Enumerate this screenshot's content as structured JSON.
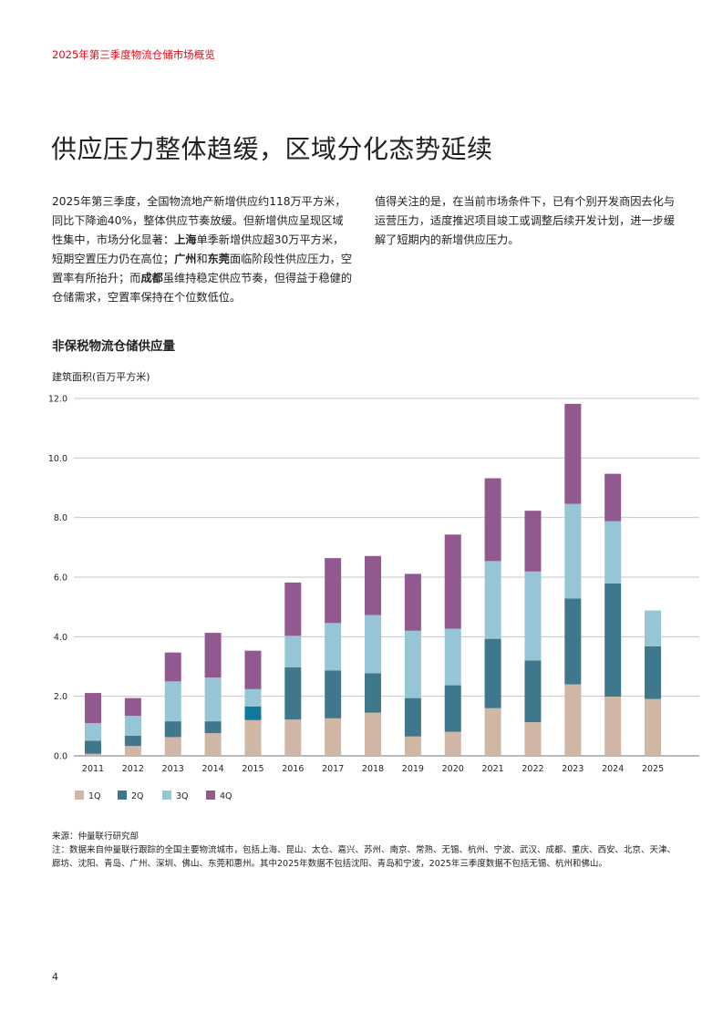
{
  "header": "2025年第三季度物流仓储市场概览",
  "title": "供应压力整体趋缓，区域分化态势延续",
  "paragraph_left": [
    {
      "text": "2025年第三季度，全国物流地产新增供应约118万平方米，同比下降逾40%，整体供应节奏放缓。但新增供应呈现区域性集中，市场分化显著：",
      "bold": false
    },
    {
      "text": "上海",
      "bold": true
    },
    {
      "text": "单季新增供应超30万平方米，短期空置压力仍在高位；",
      "bold": false
    },
    {
      "text": "广州",
      "bold": true
    },
    {
      "text": "和",
      "bold": false
    },
    {
      "text": "东莞",
      "bold": true
    },
    {
      "text": "面临阶段性供应压力，空置率有所抬升；而",
      "bold": false
    },
    {
      "text": "成都",
      "bold": true
    },
    {
      "text": "虽维持稳定供应节奏，但得益于稳健的仓储需求，空置率保持在个位数低位。",
      "bold": false
    }
  ],
  "paragraph_right": "值得关注的是，在当前市场条件下，已有个别开发商因去化与运营压力，适度推迟项目竣工或调整后续开发计划，进一步缓解了短期内的新增供应压力。",
  "chart_data": {
    "type": "bar",
    "stacked": true,
    "title": "非保税物流仓储供应量",
    "ylabel": "建筑面积(百万平方米)",
    "xlabel": "",
    "ylim": [
      0,
      12
    ],
    "yticks": [
      "0.0",
      "2.0",
      "4.0",
      "6.0",
      "8.0",
      "10.0",
      "12.0"
    ],
    "grid": true,
    "legend_position": "bottom-left",
    "categories": [
      "2011",
      "2012",
      "2013",
      "2014",
      "2015",
      "2016",
      "2017",
      "2018",
      "2019",
      "2020",
      "2021",
      "2022",
      "2023",
      "2024",
      "2025"
    ],
    "series": [
      {
        "name": "1Q",
        "color": "#d0b6a4",
        "values": [
          0.07,
          0.33,
          0.63,
          0.76,
          1.2,
          1.22,
          1.26,
          1.45,
          0.65,
          0.81,
          1.6,
          1.13,
          2.4,
          1.99,
          1.91
        ]
      },
      {
        "name": "2Q",
        "color": "#3f788c",
        "values": [
          0.44,
          0.35,
          0.53,
          0.4,
          0.46,
          1.75,
          1.61,
          1.32,
          1.29,
          1.56,
          2.33,
          2.07,
          2.88,
          3.8,
          1.77
        ]
      },
      {
        "name": "3Q",
        "color": "#96c5d5",
        "values": [
          0.59,
          0.66,
          1.34,
          1.47,
          0.58,
          1.06,
          1.59,
          1.96,
          2.26,
          1.9,
          2.61,
          2.99,
          3.18,
          2.09,
          1.2
        ]
      },
      {
        "name": "4Q",
        "color": "#91598f",
        "values": [
          1.01,
          0.6,
          0.97,
          1.5,
          1.29,
          1.79,
          2.18,
          1.98,
          1.91,
          3.16,
          2.78,
          2.04,
          3.36,
          1.59,
          null
        ]
      }
    ],
    "highlight": {
      "category": "2015",
      "series": "2Q",
      "color": "#0e7a9e"
    }
  },
  "source": "来源：仲量联行研究部",
  "note": "注：数据来自仲量联行跟踪的全国主要物流城市，包括上海、昆山、太仓、嘉兴、苏州、南京、常熟、无锡、杭州、宁波、武汉、成都、重庆、西安、北京、天津、廊坊、沈阳、青岛、广州、深圳、佛山、东莞和惠州。其中2025年数据不包括沈阳、青岛和宁波，2025年三季度数据不包括无锡、杭州和佛山。",
  "page_number": "4"
}
